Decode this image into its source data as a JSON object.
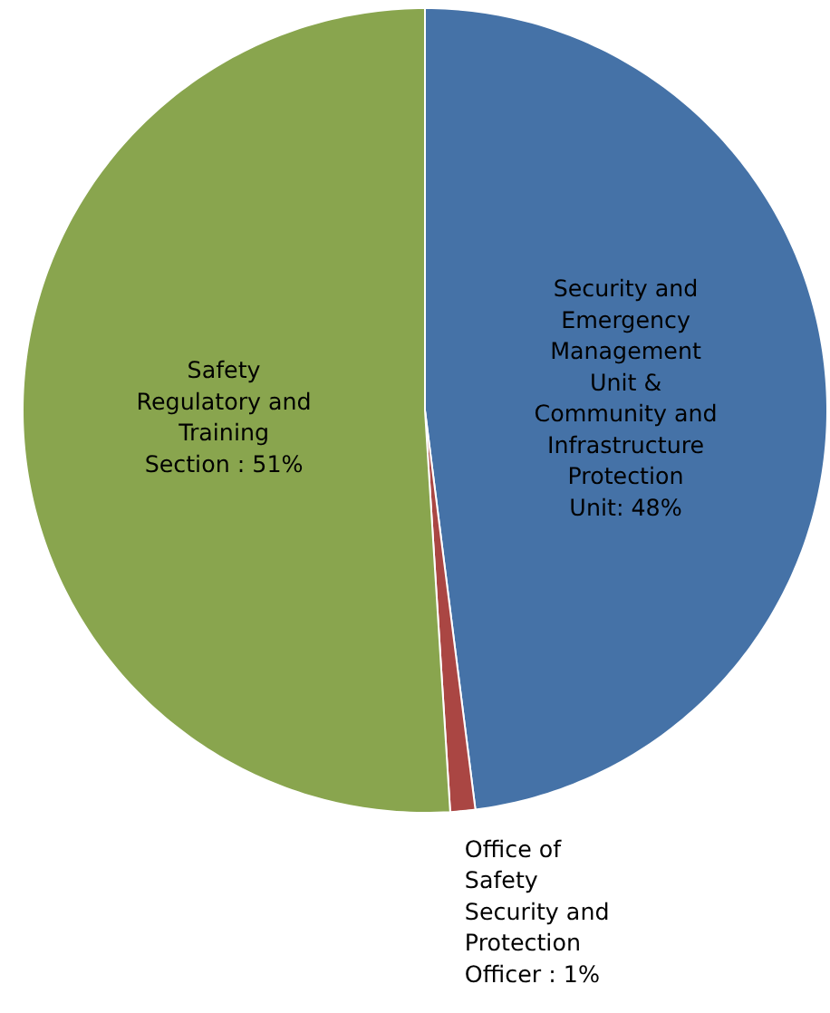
{
  "chart_data": {
    "type": "pie",
    "categories": [
      "Security and Emergency Management Unit & Community and Infrastructure Protection Unit",
      "Office of Safety Security and Protection Officer",
      "Safety Regulatory and Training Section"
    ],
    "values": [
      48,
      1,
      51
    ],
    "value_labels": [
      ": 48%",
      " : 1%",
      " : 51%"
    ],
    "colors": [
      "#4572a7",
      "#aa4643",
      "#89a54e"
    ]
  }
}
